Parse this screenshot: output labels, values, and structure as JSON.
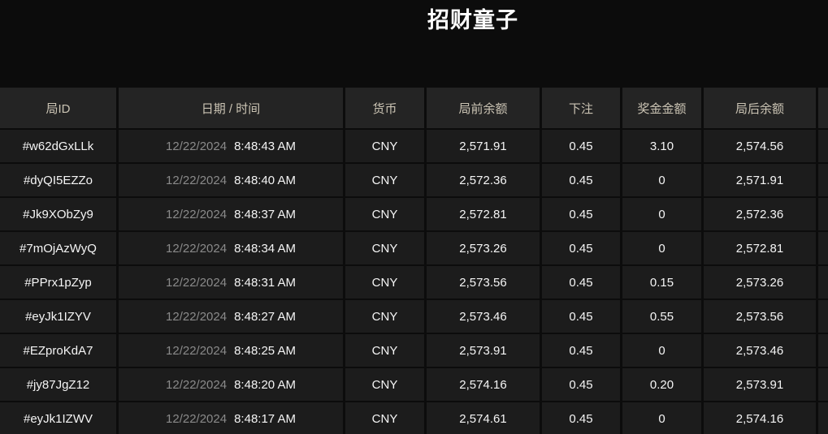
{
  "title": "招财童子",
  "table": {
    "headers": {
      "round_id": "局ID",
      "datetime": "日期 / 时间",
      "currency": "货币",
      "balance_before": "局前余额",
      "bet": "下注",
      "bonus": "奖金金额",
      "balance_after": "局后余额"
    },
    "rows": [
      {
        "id": "#w62dGxLLk",
        "date": "12/22/2024",
        "time": "8:48:43 AM",
        "currency": "CNY",
        "balance_before": "2,571.91",
        "bet": "0.45",
        "bonus": "3.10",
        "balance_after": "2,574.56"
      },
      {
        "id": "#dyQI5EZZo",
        "date": "12/22/2024",
        "time": "8:48:40 AM",
        "currency": "CNY",
        "balance_before": "2,572.36",
        "bet": "0.45",
        "bonus": "0",
        "balance_after": "2,571.91"
      },
      {
        "id": "#Jk9XObZy9",
        "date": "12/22/2024",
        "time": "8:48:37 AM",
        "currency": "CNY",
        "balance_before": "2,572.81",
        "bet": "0.45",
        "bonus": "0",
        "balance_after": "2,572.36"
      },
      {
        "id": "#7mOjAzWyQ",
        "date": "12/22/2024",
        "time": "8:48:34 AM",
        "currency": "CNY",
        "balance_before": "2,573.26",
        "bet": "0.45",
        "bonus": "0",
        "balance_after": "2,572.81"
      },
      {
        "id": "#PPrx1pZyp",
        "date": "12/22/2024",
        "time": "8:48:31 AM",
        "currency": "CNY",
        "balance_before": "2,573.56",
        "bet": "0.45",
        "bonus": "0.15",
        "balance_after": "2,573.26"
      },
      {
        "id": "#eyJk1IZYV",
        "date": "12/22/2024",
        "time": "8:48:27 AM",
        "currency": "CNY",
        "balance_before": "2,573.46",
        "bet": "0.45",
        "bonus": "0.55",
        "balance_after": "2,573.56"
      },
      {
        "id": "#EZproKdA7",
        "date": "12/22/2024",
        "time": "8:48:25 AM",
        "currency": "CNY",
        "balance_before": "2,573.91",
        "bet": "0.45",
        "bonus": "0",
        "balance_after": "2,573.46"
      },
      {
        "id": "#jy87JgZ12",
        "date": "12/22/2024",
        "time": "8:48:20 AM",
        "currency": "CNY",
        "balance_before": "2,574.16",
        "bet": "0.45",
        "bonus": "0.20",
        "balance_after": "2,573.91"
      },
      {
        "id": "#eyJk1IZWV",
        "date": "12/22/2024",
        "time": "8:48:17 AM",
        "currency": "CNY",
        "balance_before": "2,574.61",
        "bet": "0.45",
        "bonus": "0",
        "balance_after": "2,574.16"
      }
    ]
  },
  "colors": {
    "page_bg": "#0c0c0c",
    "cell_bg": "#1c1c1c",
    "header_bg": "#242424",
    "header_text": "#cbc4b4",
    "body_text": "#f5f5f5",
    "date_text": "#8a8a8a"
  }
}
